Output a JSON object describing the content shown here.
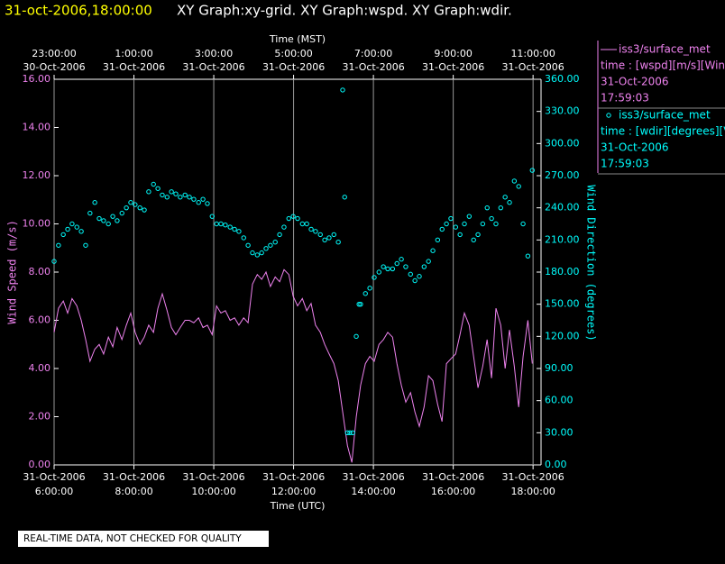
{
  "header": {
    "time": "31-oct-2006,18:00:00",
    "graphs": "XY Graph:xy-grid.  XY Graph:wspd.  XY Graph:wdir."
  },
  "footer": "REAL-TIME DATA, NOT CHECKED FOR QUALITY",
  "chart_data": {
    "type": "line",
    "xlabel": "Time (UTC)",
    "x2label": "Time (MST)",
    "ylabel": "Wind Speed (m/s)",
    "y2label": "Wind Direction (degrees)",
    "xlim": [
      6,
      18.2
    ],
    "xticks": [
      {
        "value": 6,
        "label": "6:00:00",
        "date": "31-Oct-2006"
      },
      {
        "value": 8,
        "label": "8:00:00",
        "date": "31-Oct-2006"
      },
      {
        "value": 10,
        "label": "10:00:00",
        "date": "31-Oct-2006"
      },
      {
        "value": 12,
        "label": "12:00:00",
        "date": "31-Oct-2006"
      },
      {
        "value": 14,
        "label": "14:00:00",
        "date": "31-Oct-2006"
      },
      {
        "value": 16,
        "label": "16:00:00",
        "date": "31-Oct-2006"
      },
      {
        "value": 18,
        "label": "18:00:00",
        "date": "31-Oct-2006"
      }
    ],
    "x2ticks": [
      {
        "value": 6,
        "label": "23:00:00",
        "date": "30-Oct-2006"
      },
      {
        "value": 8,
        "label": "1:00:00",
        "date": "31-Oct-2006"
      },
      {
        "value": 10,
        "label": "3:00:00",
        "date": "31-Oct-2006"
      },
      {
        "value": 12,
        "label": "5:00:00",
        "date": "31-Oct-2006"
      },
      {
        "value": 14,
        "label": "7:00:00",
        "date": "31-Oct-2006"
      },
      {
        "value": 16,
        "label": "9:00:00",
        "date": "31-Oct-2006"
      },
      {
        "value": 18,
        "label": "11:00:00",
        "date": "31-Oct-2006"
      }
    ],
    "ylim": [
      0,
      16
    ],
    "yticks": [
      {
        "value": 0,
        "label": "0.00"
      },
      {
        "value": 2,
        "label": "2.00"
      },
      {
        "value": 4,
        "label": "4.00"
      },
      {
        "value": 6,
        "label": "6.00"
      },
      {
        "value": 8,
        "label": "8.00"
      },
      {
        "value": 10,
        "label": "10.00"
      },
      {
        "value": 12,
        "label": "12.00"
      },
      {
        "value": 14,
        "label": "14.00"
      },
      {
        "value": 16,
        "label": "16.00"
      }
    ],
    "y2lim": [
      0,
      360
    ],
    "y2ticks": [
      {
        "value": 0,
        "label": "0.00"
      },
      {
        "value": 30,
        "label": "30.00"
      },
      {
        "value": 60,
        "label": "60.00"
      },
      {
        "value": 90,
        "label": "90.00"
      },
      {
        "value": 120,
        "label": "120.00"
      },
      {
        "value": 150,
        "label": "150.00"
      },
      {
        "value": 180,
        "label": "180.00"
      },
      {
        "value": 210,
        "label": "210.00"
      },
      {
        "value": 240,
        "label": "240.00"
      },
      {
        "value": 270,
        "label": "270.00"
      },
      {
        "value": 300,
        "label": "300.00"
      },
      {
        "value": 330,
        "label": "330.00"
      },
      {
        "value": 360,
        "label": "360.00"
      }
    ],
    "xgrid": true,
    "series": [
      {
        "name": "iss3/surface_met",
        "type": "line",
        "color": "#ee82ee",
        "legend_lines": [
          "time : [wspd][m/s][Win",
          "31-Oct-2006",
          "17:59:03"
        ],
        "x": [
          6.0,
          6.11,
          6.23,
          6.34,
          6.45,
          6.57,
          6.68,
          6.79,
          6.9,
          7.02,
          7.13,
          7.24,
          7.36,
          7.47,
          7.58,
          7.7,
          7.81,
          7.92,
          8.03,
          8.15,
          8.26,
          8.37,
          8.49,
          8.6,
          8.71,
          8.83,
          8.94,
          9.05,
          9.16,
          9.28,
          9.39,
          9.5,
          9.62,
          9.73,
          9.84,
          9.96,
          10.07,
          10.18,
          10.29,
          10.41,
          10.52,
          10.63,
          10.75,
          10.86,
          10.97,
          11.09,
          11.2,
          11.31,
          11.42,
          11.54,
          11.65,
          11.76,
          11.88,
          11.99,
          12.1,
          12.22,
          12.33,
          12.44,
          12.55,
          12.67,
          12.78,
          12.89,
          13.01,
          13.12,
          13.23,
          13.35,
          13.46,
          13.57,
          13.68,
          13.8,
          13.91,
          14.02,
          14.14,
          14.25,
          14.36,
          14.48,
          14.59,
          14.7,
          14.81,
          14.93,
          15.04,
          15.15,
          15.27,
          15.38,
          15.49,
          15.61,
          15.72,
          15.83,
          15.94,
          16.06,
          16.17,
          16.28,
          16.4,
          16.51,
          16.62,
          16.74,
          16.85,
          16.96,
          17.07,
          17.19,
          17.3,
          17.41,
          17.53,
          17.64,
          17.75,
          17.87,
          17.98
        ],
        "values": [
          5.5,
          6.5,
          6.8,
          6.3,
          6.9,
          6.6,
          6.0,
          5.2,
          4.3,
          4.8,
          5.0,
          4.6,
          5.3,
          4.9,
          5.7,
          5.2,
          5.8,
          6.3,
          5.5,
          5.0,
          5.3,
          5.8,
          5.5,
          6.5,
          7.1,
          6.4,
          5.7,
          5.4,
          5.7,
          6.0,
          6.0,
          5.9,
          6.1,
          5.7,
          5.8,
          5.4,
          6.6,
          6.3,
          6.4,
          6.0,
          6.1,
          5.8,
          6.1,
          5.9,
          7.5,
          7.9,
          7.7,
          8.0,
          7.4,
          7.8,
          7.6,
          8.1,
          7.9,
          7.0,
          6.6,
          6.9,
          6.4,
          6.7,
          5.8,
          5.5,
          5.0,
          4.6,
          4.2,
          3.5,
          2.2,
          0.8,
          0.1,
          2.0,
          3.3,
          4.2,
          4.5,
          4.3,
          5.0,
          5.2,
          5.5,
          5.3,
          4.2,
          3.3,
          2.6,
          3.0,
          2.2,
          1.6,
          2.4,
          3.7,
          3.5,
          2.5,
          1.8,
          4.2,
          4.4,
          4.6,
          5.4,
          6.3,
          5.8,
          4.5,
          3.2,
          4.1,
          5.2,
          3.6,
          6.5,
          5.8,
          4.0,
          5.6,
          4.1,
          2.4,
          4.5,
          6.0,
          4.2
        ]
      },
      {
        "name": "iss3/surface_met",
        "type": "scatter",
        "axis": "y2",
        "color": "#00ffff",
        "legend_lines": [
          "time : [wdir][degrees][V",
          "31-Oct-2006",
          "17:59:03"
        ],
        "x": [
          6.0,
          6.11,
          6.23,
          6.34,
          6.45,
          6.57,
          6.68,
          6.79,
          6.9,
          7.02,
          7.13,
          7.24,
          7.36,
          7.47,
          7.58,
          7.7,
          7.81,
          7.92,
          8.03,
          8.15,
          8.26,
          8.37,
          8.49,
          8.6,
          8.71,
          8.83,
          8.94,
          9.05,
          9.16,
          9.28,
          9.39,
          9.5,
          9.62,
          9.73,
          9.84,
          9.96,
          10.07,
          10.18,
          10.29,
          10.41,
          10.52,
          10.63,
          10.75,
          10.86,
          10.97,
          11.09,
          11.2,
          11.31,
          11.42,
          11.54,
          11.65,
          11.76,
          11.88,
          11.99,
          12.1,
          12.22,
          12.33,
          12.44,
          12.55,
          12.67,
          12.78,
          12.89,
          13.01,
          13.12,
          13.23,
          13.28,
          13.35,
          13.41,
          13.48,
          13.57,
          13.64,
          13.68,
          13.8,
          13.91,
          14.02,
          14.14,
          14.25,
          14.36,
          14.48,
          14.59,
          14.7,
          14.81,
          14.93,
          15.04,
          15.15,
          15.27,
          15.38,
          15.49,
          15.61,
          15.72,
          15.83,
          15.94,
          16.06,
          16.17,
          16.28,
          16.4,
          16.51,
          16.62,
          16.74,
          16.85,
          16.96,
          17.07,
          17.19,
          17.3,
          17.41,
          17.53,
          17.64,
          17.75,
          17.87,
          17.98
        ],
        "values": [
          190,
          205,
          215,
          220,
          225,
          222,
          218,
          205,
          235,
          245,
          230,
          228,
          225,
          232,
          228,
          235,
          240,
          245,
          243,
          240,
          238,
          255,
          262,
          258,
          252,
          250,
          255,
          253,
          250,
          252,
          250,
          248,
          245,
          248,
          244,
          232,
          225,
          225,
          224,
          222,
          220,
          218,
          212,
          205,
          198,
          196,
          198,
          202,
          205,
          208,
          215,
          222,
          230,
          232,
          230,
          225,
          225,
          220,
          218,
          215,
          210,
          212,
          215,
          208,
          350,
          250,
          30,
          30,
          30,
          120,
          150,
          150,
          160,
          165,
          175,
          180,
          185,
          183,
          183,
          188,
          192,
          185,
          178,
          172,
          176,
          185,
          190,
          200,
          210,
          220,
          225,
          230,
          222,
          215,
          225,
          232,
          210,
          215,
          225,
          240,
          230,
          225,
          240,
          250,
          245,
          265,
          260,
          225,
          195,
          275
        ]
      }
    ]
  }
}
